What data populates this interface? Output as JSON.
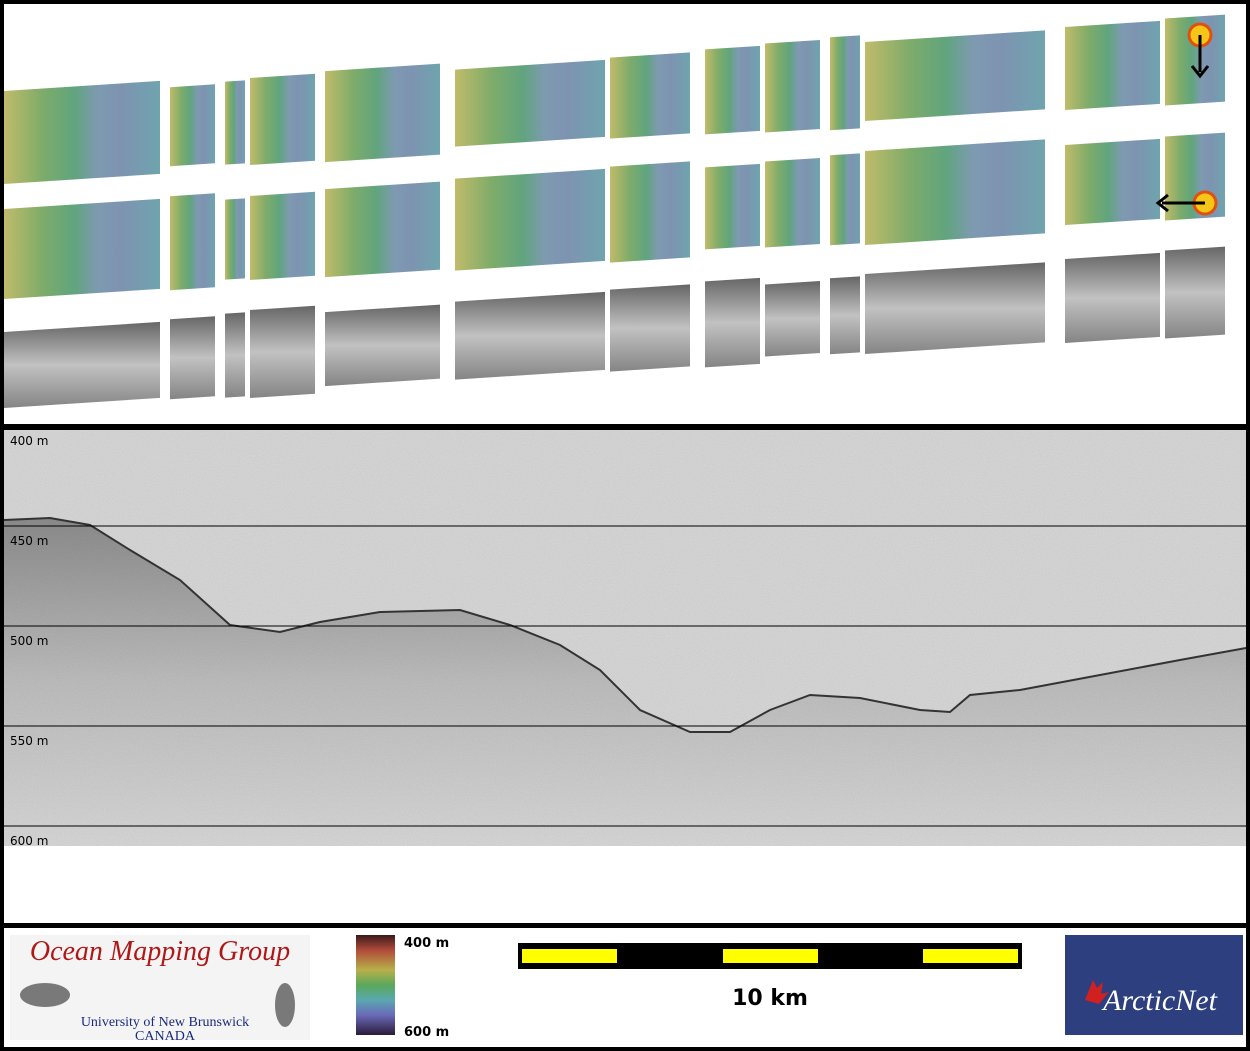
{
  "profile": {
    "depth_labels": [
      "400 m",
      "450 m",
      "500 m",
      "550 m",
      "600 m"
    ]
  },
  "footer": {
    "logo": {
      "title": "Ocean Mapping Group",
      "university": "University of New Brunswick",
      "country": "CANADA"
    },
    "color_bar": {
      "top_label": "400 m",
      "bottom_label": "600 m"
    },
    "scale_bar": {
      "label": "10 km"
    },
    "partner_logo": {
      "label": "ArcticNet"
    }
  }
}
